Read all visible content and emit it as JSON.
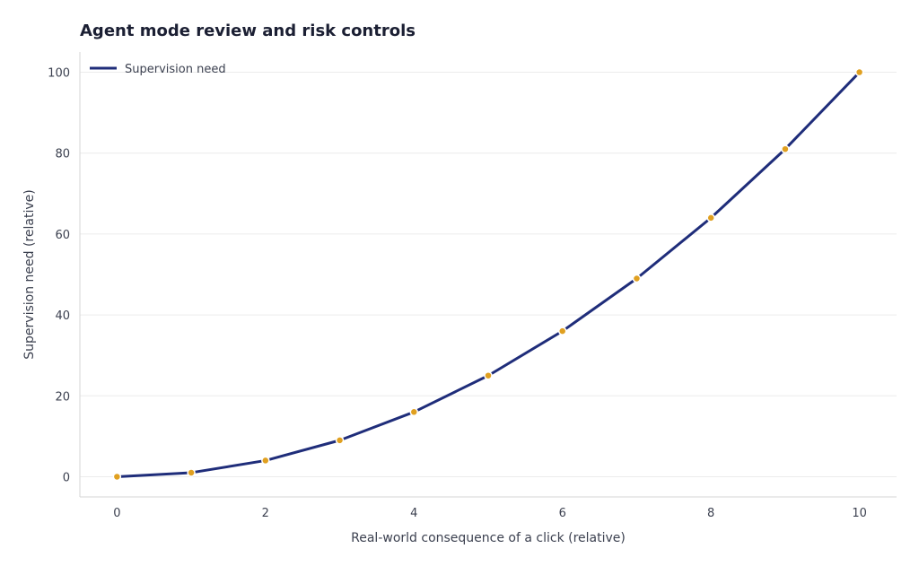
{
  "chart_data": {
    "type": "line",
    "title": "Agent mode review and risk controls",
    "xlabel": "Real-world consequence of a click (relative)",
    "ylabel": "Supervision need (relative)",
    "x": [
      0,
      1,
      2,
      3,
      4,
      5,
      6,
      7,
      8,
      9,
      10
    ],
    "series": [
      {
        "name": "Supervision need",
        "values": [
          0,
          1,
          4,
          9,
          16,
          25,
          36,
          49,
          64,
          81,
          100
        ],
        "line_color": "#1f2d7a",
        "marker_color": "#e0a020"
      }
    ],
    "xlim": [
      -0.5,
      10.5
    ],
    "ylim": [
      -5,
      105
    ],
    "xticks": [
      0,
      2,
      4,
      6,
      8,
      10
    ],
    "yticks": [
      0,
      20,
      40,
      60,
      80,
      100
    ],
    "grid": "horizontal",
    "legend": "top-left"
  }
}
